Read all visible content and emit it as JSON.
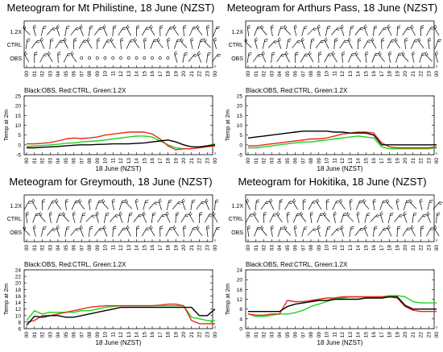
{
  "legend_text": "Black:OBS, Red:CTRL, Green:1.2X",
  "wind_rows": [
    "1.2X",
    "CTRL",
    "OBS"
  ],
  "hour_ticks": [
    "00",
    "01",
    "02",
    "03",
    "04",
    "05",
    "06",
    "07",
    "08",
    "09",
    "10",
    "11",
    "12",
    "13",
    "14",
    "15",
    "16",
    "17",
    "18",
    "19",
    "20",
    "21",
    "22",
    "23",
    "00"
  ],
  "colors": {
    "obs": "#000000",
    "ctrl": "#e8291c",
    "x12": "#1ad61a"
  },
  "chart_data": [
    {
      "type": "line",
      "title": "Meteogram for Mt Philistine, 18 June (NZST)",
      "xlabel": "18 June (NZST)",
      "ylabel": "Temp at 2m",
      "ylim": [
        -5,
        25
      ],
      "yticks": [
        -5,
        0,
        5,
        10,
        15,
        20,
        25
      ],
      "x": [
        0,
        1,
        2,
        3,
        4,
        5,
        6,
        7,
        8,
        9,
        10,
        11,
        12,
        13,
        14,
        15,
        16,
        17,
        18,
        19,
        20,
        21,
        22,
        23,
        24
      ],
      "series": [
        {
          "name": "OBS",
          "color": "#000000",
          "values": [
            -1.5,
            -1.5,
            -1.2,
            -1,
            -0.8,
            -0.5,
            -0.2,
            0,
            0,
            0.2,
            0.3,
            0.5,
            0.5,
            0.5,
            0.8,
            1,
            1.5,
            2,
            2.5,
            1.5,
            0,
            -1,
            -1,
            -0.5,
            0
          ]
        },
        {
          "name": "CTRL",
          "color": "#e8291c",
          "values": [
            0.5,
            0.5,
            0.8,
            1.2,
            2,
            3,
            3.5,
            3.2,
            3.5,
            4,
            5,
            5.5,
            6,
            6.5,
            6.5,
            6.5,
            5.5,
            3,
            -0.5,
            -2.5,
            -2,
            -2,
            -1.5,
            -1,
            -0.5
          ]
        },
        {
          "name": "1.2X",
          "color": "#1ad61a",
          "values": [
            -0.8,
            -0.5,
            -0.3,
            0,
            0.3,
            0.8,
            1,
            1.5,
            1.8,
            2,
            2.5,
            3,
            3.5,
            4,
            4.5,
            4.5,
            4,
            2,
            0,
            -1.5,
            -2,
            -2,
            -1.5,
            -0.5,
            0.5
          ]
        }
      ]
    },
    {
      "type": "line",
      "title": "Meteogram for Arthurs Pass, 18 June (NZST)",
      "xlabel": "18 June (NZST)",
      "ylabel": "Temp at 2m",
      "ylim": [
        -5,
        25
      ],
      "yticks": [
        -5,
        0,
        5,
        10,
        15,
        20,
        25
      ],
      "x": [
        0,
        1,
        2,
        3,
        4,
        5,
        6,
        7,
        8,
        9,
        10,
        11,
        12,
        13,
        14,
        15,
        16,
        17,
        18,
        19,
        20,
        21,
        22,
        23,
        24
      ],
      "series": [
        {
          "name": "OBS",
          "color": "#000000",
          "values": [
            3.5,
            4,
            4.5,
            5,
            5.5,
            6,
            6.5,
            7,
            7,
            7,
            7,
            6.5,
            6.5,
            6,
            6,
            6,
            5,
            0,
            0,
            0,
            0,
            0,
            0,
            0,
            0
          ]
        },
        {
          "name": "CTRL",
          "color": "#e8291c",
          "values": [
            -0.5,
            -0.5,
            0,
            0.5,
            1,
            1.5,
            2,
            2.5,
            3,
            3,
            3.5,
            4.5,
            5.5,
            6,
            6.5,
            6.5,
            6,
            1,
            -1,
            -1.5,
            -1.5,
            -1.5,
            -1.5,
            -1.5,
            -1
          ]
        },
        {
          "name": "1.2X",
          "color": "#1ad61a",
          "values": [
            -1.5,
            -1.5,
            -1,
            -0.5,
            0,
            0.5,
            1,
            1.5,
            1.5,
            2,
            2.5,
            3,
            3.5,
            4,
            4.5,
            4,
            3.5,
            -1,
            -2,
            -2,
            -2,
            -2,
            -2,
            -2,
            -1.5
          ]
        }
      ]
    },
    {
      "type": "line",
      "title": "Meteogram for Greymouth, 18 June (NZST)",
      "xlabel": "18 June (NZST)",
      "ylabel": "Temp at 2m",
      "ylim": [
        6,
        24
      ],
      "yticks": [
        6,
        8,
        10,
        12,
        14,
        16,
        18,
        20,
        22,
        24
      ],
      "x": [
        0,
        1,
        2,
        3,
        4,
        5,
        6,
        7,
        8,
        9,
        10,
        11,
        12,
        13,
        14,
        15,
        16,
        17,
        18,
        19,
        20,
        21,
        22,
        23,
        24
      ],
      "series": [
        {
          "name": "OBS",
          "color": "#000000",
          "values": [
            7,
            9.8,
            9.5,
            10,
            10,
            9.5,
            9.5,
            10,
            10.5,
            11,
            11.5,
            12,
            12.5,
            12.5,
            12.5,
            12.5,
            12.5,
            12.5,
            12.5,
            12.5,
            12.5,
            12.5,
            10,
            10,
            12
          ]
        },
        {
          "name": "CTRL",
          "color": "#e8291c",
          "values": [
            8,
            8.5,
            10,
            10,
            10.5,
            11,
            11.5,
            12,
            12.5,
            12.8,
            13,
            13,
            13,
            13,
            13,
            13,
            13,
            13.2,
            13.5,
            13.5,
            13,
            8.5,
            7.5,
            7.5,
            7.5
          ]
        },
        {
          "name": "1.2X",
          "color": "#1ad61a",
          "values": [
            8.5,
            11.5,
            10.5,
            11,
            11,
            11,
            11,
            11.5,
            11.5,
            12,
            12.5,
            12.8,
            13,
            13,
            13,
            13,
            13,
            13,
            13,
            13,
            13,
            9.5,
            9,
            8.5,
            8.5
          ]
        }
      ]
    },
    {
      "type": "line",
      "title": "Meteogram for Hokitika, 18 June (NZST)",
      "xlabel": "18 June (NZST)",
      "ylabel": "Temp at 2m",
      "ylim": [
        0,
        24
      ],
      "yticks": [
        0,
        4,
        8,
        12,
        16,
        20,
        24
      ],
      "x": [
        0,
        1,
        2,
        3,
        4,
        5,
        6,
        7,
        8,
        9,
        10,
        11,
        12,
        13,
        14,
        15,
        16,
        17,
        18,
        19,
        20,
        21,
        22,
        23,
        24
      ],
      "series": [
        {
          "name": "OBS",
          "color": "#000000",
          "values": [
            7,
            7,
            7,
            7,
            7,
            9,
            10,
            10.5,
            11,
            11.5,
            11.5,
            12,
            12,
            12,
            12,
            12.5,
            12.5,
            12.5,
            13,
            13,
            9.5,
            8,
            8,
            8,
            8
          ]
        },
        {
          "name": "CTRL",
          "color": "#e8291c",
          "values": [
            6,
            5.5,
            5.5,
            6,
            6,
            11.5,
            11,
            11,
            11.5,
            12,
            12.5,
            12.5,
            13,
            13,
            13,
            13,
            13,
            13,
            13,
            12.5,
            9,
            7.5,
            7,
            7,
            7
          ]
        },
        {
          "name": "1.2X",
          "color": "#1ad61a",
          "values": [
            6,
            5,
            5,
            5.5,
            6,
            6,
            6.5,
            7.5,
            9,
            10,
            11,
            12,
            12.5,
            13,
            13,
            13,
            13,
            13,
            13.5,
            13.5,
            13,
            11,
            10.5,
            10.5,
            10.5
          ]
        }
      ]
    }
  ]
}
